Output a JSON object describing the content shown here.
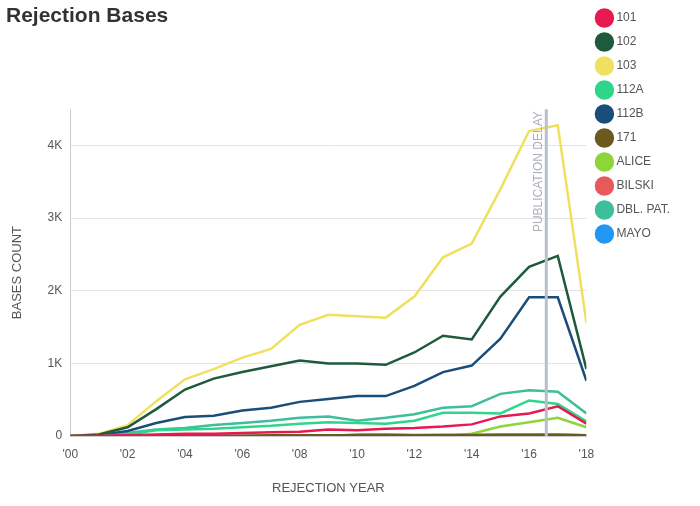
{
  "chart_data": {
    "type": "line",
    "title": "Rejection Bases",
    "x_label": "REJECTION YEAR",
    "y_label": "BASES COUNT",
    "x": [
      2000,
      2001,
      2002,
      2003,
      2004,
      2005,
      2006,
      2007,
      2008,
      2009,
      2010,
      2011,
      2012,
      2013,
      2014,
      2015,
      2016,
      2017,
      2018
    ],
    "xlim": [
      2000,
      2018
    ],
    "xticks": [
      {
        "value": 2000,
        "label": "'00"
      },
      {
        "value": 2002,
        "label": "'02"
      },
      {
        "value": 2004,
        "label": "'04"
      },
      {
        "value": 2006,
        "label": "'06"
      },
      {
        "value": 2008,
        "label": "'08"
      },
      {
        "value": 2010,
        "label": "'10"
      },
      {
        "value": 2012,
        "label": "'12"
      },
      {
        "value": 2014,
        "label": "'14"
      },
      {
        "value": 2016,
        "label": "'16"
      },
      {
        "value": 2018,
        "label": "'18"
      }
    ],
    "ylim": [
      0,
      4500
    ],
    "yticks": [
      0,
      {
        "value": 1000,
        "label": "1K"
      },
      {
        "value": 2000,
        "label": "2K"
      },
      {
        "value": 3000,
        "label": "3K"
      },
      {
        "value": 4000,
        "label": "4K"
      }
    ],
    "grid": true,
    "legend": "right",
    "marker": "none",
    "line_style": "solid",
    "annotations": [
      {
        "x": 2016.6,
        "text": "PUBLICATION DELAY"
      }
    ],
    "series": [
      {
        "name": "101",
        "color": "#e8194f",
        "values": [
          0,
          2,
          10,
          20,
          30,
          30,
          40,
          50,
          60,
          90,
          80,
          100,
          110,
          130,
          160,
          270,
          310,
          410,
          170
        ]
      },
      {
        "name": "102",
        "color": "#1e5a3c",
        "values": [
          0,
          20,
          120,
          370,
          640,
          790,
          880,
          960,
          1040,
          1000,
          1000,
          980,
          1150,
          1380,
          1330,
          1920,
          2330,
          2480,
          920
        ]
      },
      {
        "name": "103",
        "color": "#f0e060",
        "values": [
          0,
          30,
          150,
          480,
          780,
          920,
          1080,
          1200,
          1530,
          1670,
          1650,
          1630,
          1920,
          2460,
          2650,
          3400,
          4200,
          4280,
          1560
        ]
      },
      {
        "name": "112A",
        "color": "#2ed68a",
        "values": [
          0,
          5,
          20,
          80,
          90,
          100,
          120,
          140,
          170,
          190,
          180,
          170,
          210,
          320,
          320,
          310,
          490,
          440,
          200
        ]
      },
      {
        "name": "112B",
        "color": "#1a4e7a",
        "values": [
          0,
          10,
          70,
          180,
          260,
          280,
          350,
          390,
          470,
          510,
          550,
          550,
          690,
          880,
          970,
          1340,
          1910,
          1910,
          760
        ]
      },
      {
        "name": "171",
        "color": "#6b5a1e",
        "values": [
          0,
          2,
          5,
          5,
          5,
          5,
          5,
          10,
          10,
          10,
          10,
          15,
          10,
          15,
          15,
          15,
          15,
          15,
          10
        ]
      },
      {
        "name": "ALICE",
        "color": "#8cd63a",
        "values": [
          0,
          0,
          0,
          0,
          0,
          0,
          0,
          0,
          0,
          0,
          0,
          0,
          0,
          0,
          30,
          130,
          190,
          250,
          120
        ]
      },
      {
        "name": "BILSKI",
        "color": "#e85a5a",
        "values": [
          0,
          0,
          0,
          0,
          0,
          0,
          0,
          0,
          0,
          0,
          20,
          20,
          15,
          15,
          10,
          10,
          10,
          15,
          10
        ]
      },
      {
        "name": "DBL. PAT.",
        "color": "#3cbf9a",
        "values": [
          0,
          5,
          40,
          90,
          110,
          150,
          180,
          210,
          250,
          270,
          210,
          250,
          300,
          390,
          410,
          580,
          630,
          610,
          310
        ]
      },
      {
        "name": "MAYO",
        "color": "#2196f3",
        "values": [
          0,
          0,
          0,
          0,
          0,
          0,
          0,
          0,
          0,
          0,
          0,
          0,
          5,
          10,
          15,
          20,
          20,
          20,
          10
        ]
      }
    ]
  }
}
